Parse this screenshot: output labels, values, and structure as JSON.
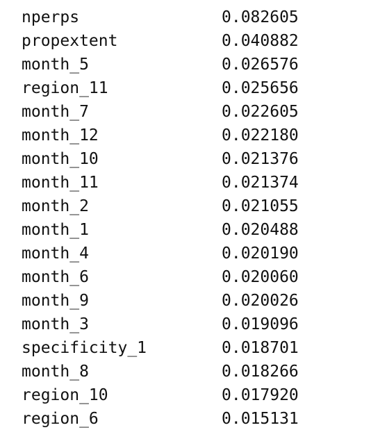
{
  "rows": [
    {
      "name": "nperps",
      "value": "0.082605"
    },
    {
      "name": "propextent",
      "value": "0.040882"
    },
    {
      "name": "month_5",
      "value": "0.026576"
    },
    {
      "name": "region_11",
      "value": "0.025656"
    },
    {
      "name": "month_7",
      "value": "0.022605"
    },
    {
      "name": "month_12",
      "value": "0.022180"
    },
    {
      "name": "month_10",
      "value": "0.021376"
    },
    {
      "name": "month_11",
      "value": "0.021374"
    },
    {
      "name": "month_2",
      "value": "0.021055"
    },
    {
      "name": "month_1",
      "value": "0.020488"
    },
    {
      "name": "month_4",
      "value": "0.020190"
    },
    {
      "name": "month_6",
      "value": "0.020060"
    },
    {
      "name": "month_9",
      "value": "0.020026"
    },
    {
      "name": "month_3",
      "value": "0.019096"
    },
    {
      "name": "specificity_1",
      "value": "0.018701"
    },
    {
      "name": "month_8",
      "value": "0.018266"
    },
    {
      "name": "region_10",
      "value": "0.017920"
    },
    {
      "name": "region_6",
      "value": "0.015131"
    }
  ]
}
